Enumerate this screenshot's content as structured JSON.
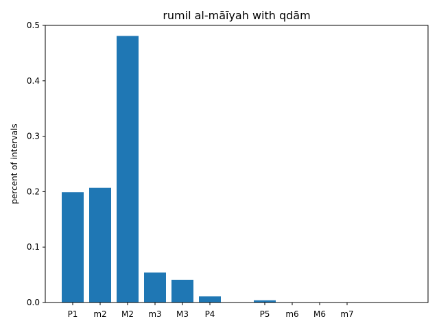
{
  "chart_data": {
    "type": "bar",
    "title": "rumil al-māīyah with qdām",
    "xlabel": "",
    "ylabel": "percent of intervals",
    "ylim": [
      0,
      0.5
    ],
    "yticks": [
      "0.0",
      "0.1",
      "0.2",
      "0.3",
      "0.4",
      "0.5"
    ],
    "categories": [
      "P1",
      "m2",
      "M2",
      "m3",
      "M3",
      "P4",
      "",
      "P5",
      "m6",
      "M6",
      "m7"
    ],
    "values": [
      0.199,
      0.207,
      0.481,
      0.054,
      0.041,
      0.011,
      0,
      0.004,
      0,
      0,
      0
    ],
    "bar_color": "#1f77b4",
    "grid": false
  }
}
